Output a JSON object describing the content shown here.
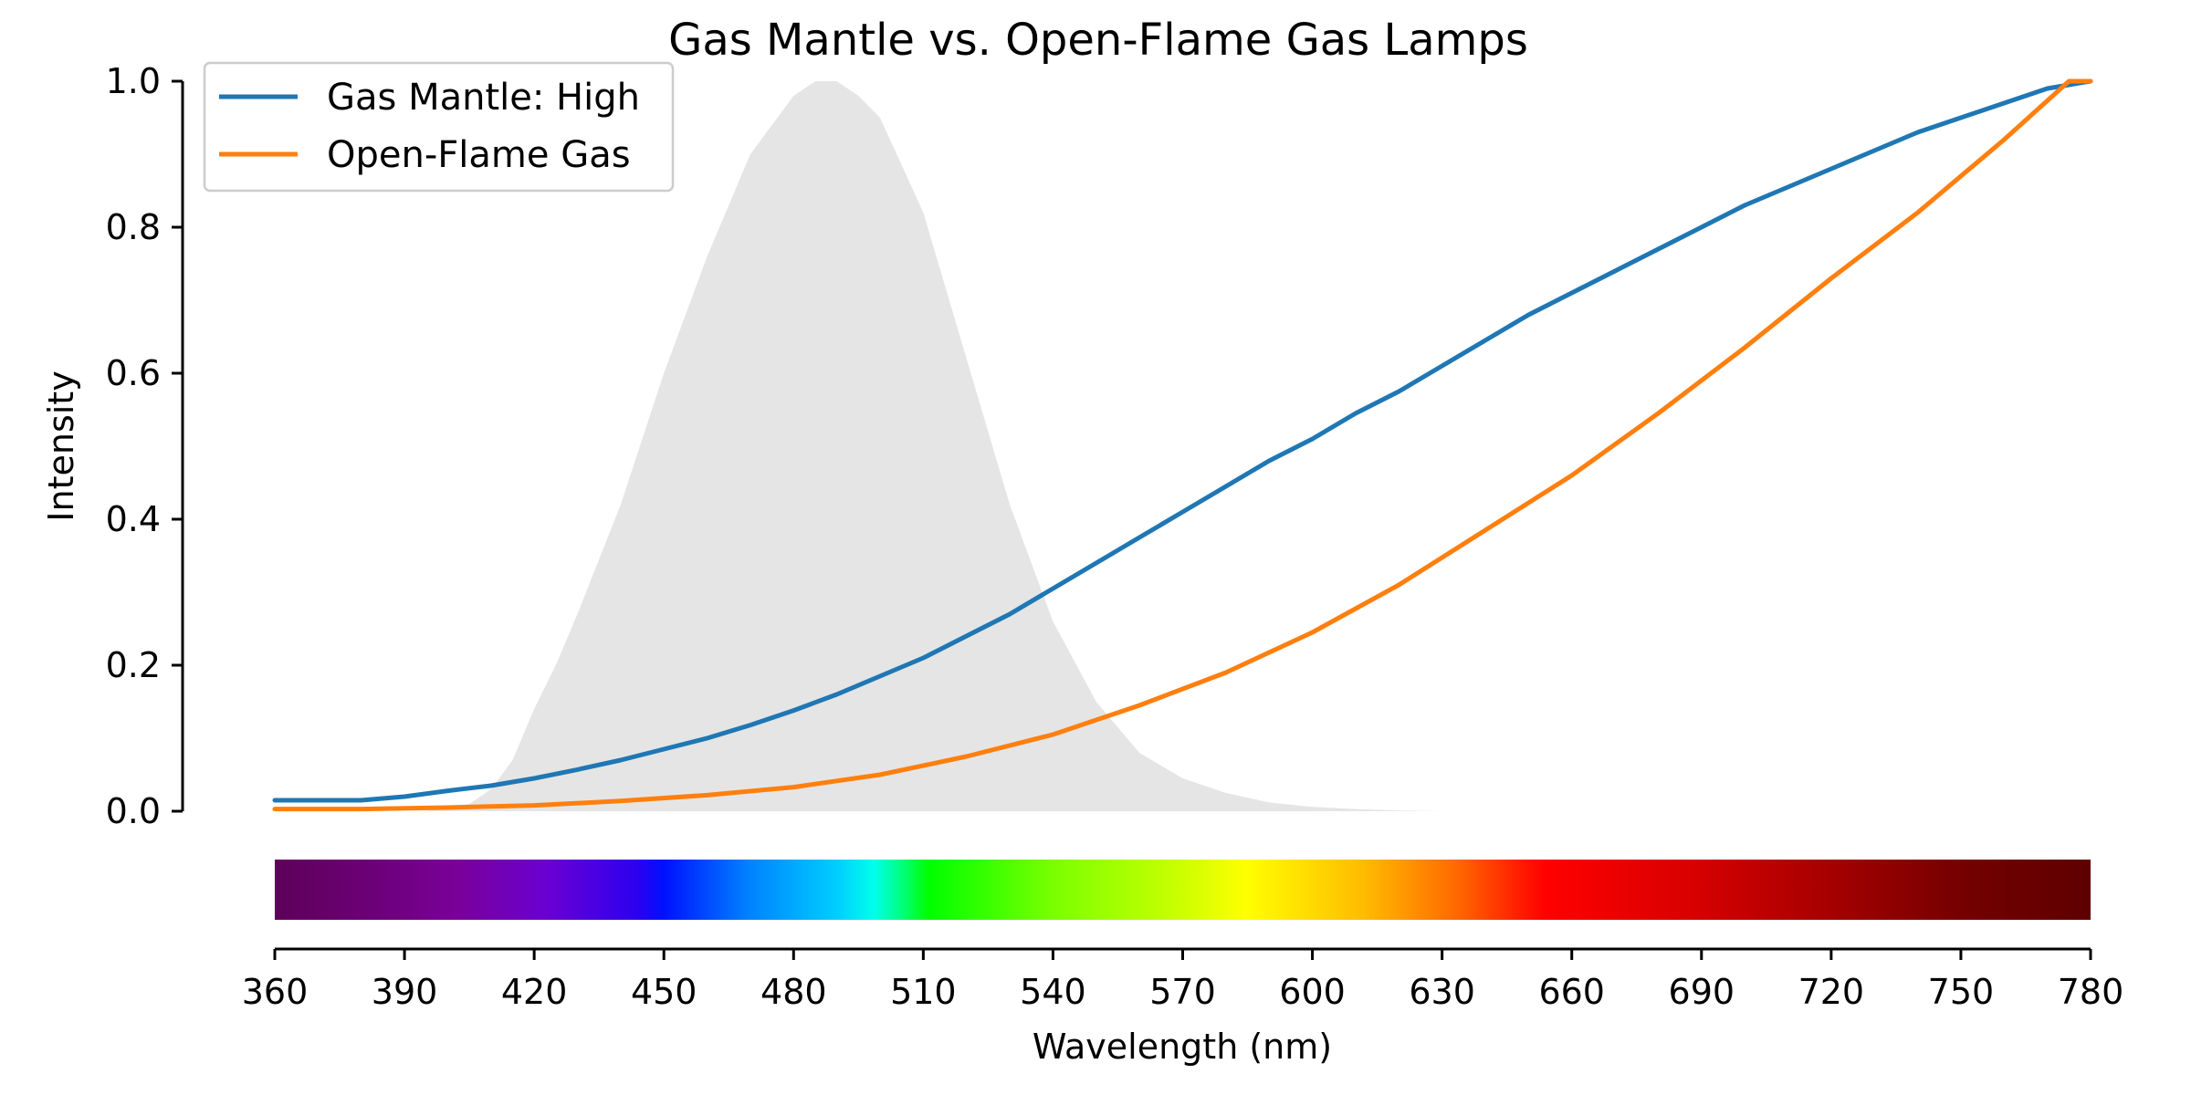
{
  "chart_data": {
    "type": "line",
    "title": "Gas Mantle vs. Open-Flame Gas Lamps",
    "xlabel": "Wavelength (nm)",
    "ylabel": "Intensity",
    "xlim": [
      360,
      780
    ],
    "ylim": [
      0,
      1.0
    ],
    "x_ticks": [
      360,
      390,
      420,
      450,
      480,
      510,
      540,
      570,
      600,
      630,
      660,
      690,
      720,
      750,
      780
    ],
    "x_tick_labels": [
      "360",
      "390",
      "420",
      "450",
      "480",
      "510",
      "540",
      "570",
      "600",
      "630",
      "660",
      "690",
      "720",
      "750",
      "780"
    ],
    "y_ticks": [
      0.0,
      0.2,
      0.4,
      0.6,
      0.8,
      1.0
    ],
    "y_tick_labels": [
      "0.0",
      "0.2",
      "0.4",
      "0.6",
      "0.8",
      "1.0"
    ],
    "grid": false,
    "legend_position": "top-left",
    "spectrum_bar": true,
    "series": [
      {
        "name": "Gas Mantle: High",
        "color": "#1f77b4",
        "x": [
          360,
          380,
          390,
          400,
          410,
          420,
          430,
          440,
          450,
          460,
          470,
          480,
          490,
          500,
          510,
          520,
          530,
          540,
          550,
          560,
          570,
          580,
          590,
          600,
          610,
          620,
          630,
          640,
          650,
          660,
          670,
          680,
          690,
          700,
          710,
          720,
          730,
          740,
          750,
          760,
          770,
          780
        ],
        "values": [
          0.015,
          0.015,
          0.02,
          0.028,
          0.035,
          0.045,
          0.057,
          0.07,
          0.085,
          0.1,
          0.118,
          0.138,
          0.16,
          0.185,
          0.21,
          0.24,
          0.27,
          0.305,
          0.34,
          0.375,
          0.41,
          0.445,
          0.48,
          0.51,
          0.545,
          0.575,
          0.61,
          0.645,
          0.68,
          0.71,
          0.74,
          0.77,
          0.8,
          0.83,
          0.855,
          0.88,
          0.905,
          0.93,
          0.95,
          0.97,
          0.99,
          1.0
        ]
      },
      {
        "name": "Open-Flame Gas",
        "color": "#ff7f0e",
        "x": [
          360,
          380,
          400,
          420,
          440,
          460,
          480,
          500,
          520,
          540,
          560,
          580,
          600,
          620,
          640,
          660,
          680,
          700,
          720,
          740,
          760,
          775,
          780
        ],
        "values": [
          0.003,
          0.003,
          0.005,
          0.008,
          0.014,
          0.022,
          0.033,
          0.05,
          0.075,
          0.105,
          0.145,
          0.19,
          0.245,
          0.31,
          0.385,
          0.46,
          0.545,
          0.635,
          0.73,
          0.82,
          0.92,
          1.0,
          1.0
        ]
      }
    ],
    "reference_curve": {
      "color": "#e5e5e5",
      "x": [
        360,
        380,
        395,
        405,
        410,
        415,
        420,
        425,
        430,
        440,
        450,
        460,
        470,
        480,
        485,
        490,
        495,
        500,
        510,
        520,
        530,
        540,
        550,
        560,
        570,
        580,
        590,
        600,
        610,
        620,
        630
      ],
      "values": [
        0,
        0,
        0,
        0.01,
        0.03,
        0.07,
        0.14,
        0.2,
        0.27,
        0.42,
        0.6,
        0.76,
        0.9,
        0.98,
        1.0,
        1.0,
        0.98,
        0.95,
        0.82,
        0.62,
        0.42,
        0.26,
        0.15,
        0.08,
        0.045,
        0.025,
        0.012,
        0.006,
        0.003,
        0.001,
        0
      ]
    }
  }
}
